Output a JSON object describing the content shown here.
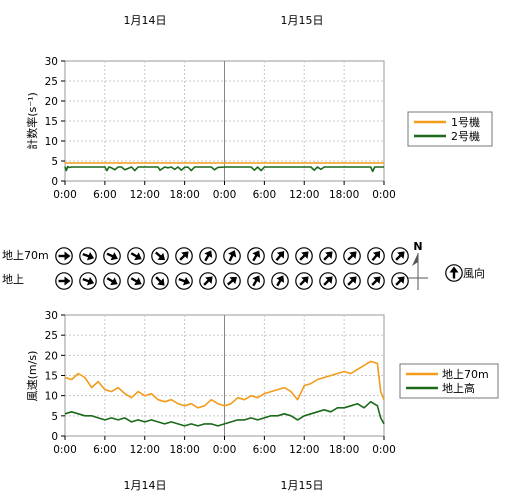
{
  "day_labels_top": [
    "1月14日",
    "1月15日"
  ],
  "day_labels_bottom": [
    "1月14日",
    "1月15日"
  ],
  "time_ticks": [
    "0:00",
    "6:00",
    "12:00",
    "18:00",
    "0:00",
    "6:00",
    "12:00",
    "18:00",
    "0:00"
  ],
  "wind": {
    "row_labels": [
      "地上70m",
      "地上"
    ],
    "compass_letter": "N",
    "legend_label": "風向",
    "directions_70m": [
      90,
      115,
      110,
      110,
      115,
      115,
      120,
      120,
      130,
      45,
      45,
      35,
      30,
      25,
      25,
      30,
      30,
      35,
      40,
      45,
      45,
      40,
      45,
      45,
      45,
      45,
      40,
      45
    ],
    "directions_ground": [
      90,
      120,
      110,
      120,
      120,
      120,
      120,
      125,
      135,
      125,
      110,
      125,
      45,
      40,
      50,
      45,
      30,
      35,
      30,
      40,
      45,
      45,
      45,
      45,
      45,
      50,
      45,
      45
    ]
  },
  "chart_data": [
    {
      "type": "line",
      "ylabel": "計数率(s⁻¹)",
      "ylim": [
        0,
        30
      ],
      "yticks": [
        0,
        5,
        10,
        15,
        20,
        25,
        30
      ],
      "xlim_hours": [
        0,
        48
      ],
      "series": [
        {
          "name": "1号機",
          "color": "#f39c1a",
          "x": [
            0,
            48
          ],
          "y": [
            4.5,
            4.5
          ]
        },
        {
          "name": "2号機",
          "color": "#1a6a1a",
          "x": [
            0,
            0.2,
            0.4,
            0.6,
            1,
            6,
            6.3,
            6.6,
            7,
            7.5,
            8,
            8.5,
            9,
            10,
            10.5,
            11,
            12,
            13,
            14,
            14.3,
            15,
            15.5,
            16,
            16.5,
            17,
            17.5,
            18,
            18.5,
            19,
            19.5,
            20,
            21,
            22,
            22.5,
            23,
            24,
            25,
            26,
            27,
            28,
            28.5,
            29,
            29.5,
            30,
            31,
            32,
            33,
            34,
            35,
            36,
            37,
            37.5,
            38,
            38.5,
            39,
            40,
            41,
            42,
            43,
            44,
            45,
            45.5,
            46,
            46.3,
            46.6,
            47,
            48
          ],
          "y": [
            3.6,
            2.6,
            3.6,
            3.4,
            3.5,
            3.5,
            2.6,
            3.5,
            3.3,
            2.8,
            3.5,
            3.5,
            2.8,
            3.5,
            2.6,
            3.5,
            3.5,
            3.5,
            3.5,
            2.7,
            3.5,
            3.3,
            3.5,
            2.9,
            3.5,
            2.7,
            3.4,
            3.5,
            2.6,
            3.5,
            3.5,
            3.5,
            3.5,
            2.8,
            3.4,
            3.5,
            3.5,
            3.5,
            3.5,
            3.5,
            2.7,
            3.5,
            2.6,
            3.5,
            3.5,
            3.5,
            3.5,
            3.5,
            3.5,
            3.5,
            3.5,
            2.7,
            3.5,
            2.9,
            3.5,
            3.5,
            3.5,
            3.5,
            3.5,
            3.5,
            3.5,
            3.5,
            3.5,
            2.4,
            3.5,
            3.5,
            3.5
          ]
        }
      ]
    },
    {
      "type": "line",
      "ylabel": "風速(m/s)",
      "ylim": [
        0,
        30
      ],
      "yticks": [
        0,
        5,
        10,
        15,
        20,
        25,
        30
      ],
      "xlim_hours": [
        0,
        48
      ],
      "series": [
        {
          "name": "地上70m",
          "color": "#f39c1a",
          "x": [
            0,
            1,
            2,
            3,
            4,
            5,
            6,
            7,
            8,
            9,
            10,
            11,
            12,
            13,
            14,
            15,
            16,
            17,
            18,
            19,
            20,
            21,
            22,
            23,
            24,
            25,
            26,
            27,
            28,
            29,
            30,
            31,
            32,
            33,
            34,
            35,
            36,
            37,
            38,
            39,
            40,
            41,
            42,
            43,
            44,
            45,
            46,
            47,
            47.5,
            48
          ],
          "y": [
            14.5,
            14.0,
            15.5,
            14.5,
            12.0,
            13.5,
            11.5,
            11.0,
            12.0,
            10.5,
            9.5,
            11.0,
            10.0,
            10.5,
            9.0,
            8.5,
            9.0,
            8.0,
            7.5,
            8.0,
            7.0,
            7.5,
            9.0,
            8.0,
            7.5,
            8.0,
            9.5,
            9.0,
            10.0,
            9.5,
            10.5,
            11.0,
            11.5,
            12.0,
            11.0,
            9.0,
            12.5,
            13.0,
            14.0,
            14.5,
            15.0,
            15.5,
            16.0,
            15.5,
            16.5,
            17.5,
            18.5,
            18.0,
            11.0,
            9.0
          ]
        },
        {
          "name": "地上高",
          "color": "#1a6a1a",
          "x": [
            0,
            1,
            2,
            3,
            4,
            5,
            6,
            7,
            8,
            9,
            10,
            11,
            12,
            13,
            14,
            15,
            16,
            17,
            18,
            19,
            20,
            21,
            22,
            23,
            24,
            25,
            26,
            27,
            28,
            29,
            30,
            31,
            32,
            33,
            34,
            35,
            36,
            37,
            38,
            39,
            40,
            41,
            42,
            43,
            44,
            45,
            46,
            47,
            47.5,
            48
          ],
          "y": [
            5.5,
            6.0,
            5.5,
            5.0,
            5.0,
            4.5,
            4.0,
            4.5,
            4.0,
            4.5,
            3.5,
            4.0,
            3.5,
            4.0,
            3.5,
            3.0,
            3.5,
            3.0,
            2.5,
            3.0,
            2.5,
            3.0,
            3.0,
            2.5,
            3.0,
            3.5,
            4.0,
            4.0,
            4.5,
            4.0,
            4.5,
            5.0,
            5.0,
            5.5,
            5.0,
            4.0,
            5.0,
            5.5,
            6.0,
            6.5,
            6.0,
            7.0,
            7.0,
            7.5,
            8.0,
            7.0,
            8.5,
            7.5,
            4.5,
            3.0
          ]
        }
      ]
    }
  ]
}
